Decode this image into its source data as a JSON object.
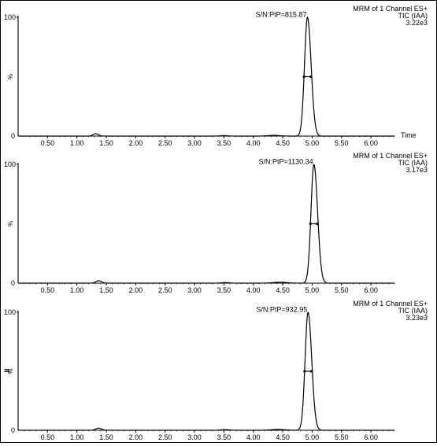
{
  "chart_data": [
    {
      "type": "line",
      "header": {
        "line1": "MRM of 1 Channel ES+",
        "line2": "TIC (IAA)",
        "line3": "3.22e3"
      },
      "sn_label": "S/N:PtP=815.87",
      "xlabel": "Time",
      "ylabel": "%",
      "y_top_label": "100",
      "y_bottom_label": "0",
      "xlim": [
        0.0,
        6.4
      ],
      "ylim": [
        0,
        100
      ],
      "x_ticks": [
        "0.50",
        "1.00",
        "1.50",
        "2.00",
        "2.50",
        "3.00",
        "3.50",
        "4.00",
        "4.50",
        "5.00",
        "5.50",
        "6.00"
      ],
      "peak_rt": 4.92,
      "peak_sigma": 0.05,
      "peak_height": 100,
      "peak_width_marker_level": 50,
      "baseline_bumps": [
        {
          "x": 1.32,
          "h": 2.0,
          "s": 0.045
        },
        {
          "x": 3.5,
          "h": 0.4,
          "s": 0.06
        },
        {
          "x": 4.35,
          "h": 0.6,
          "s": 0.1
        }
      ]
    },
    {
      "type": "line",
      "header": {
        "line1": "MRM of 1 Channel ES+",
        "line2": "TIC (IAA)",
        "line3": "3.17e3"
      },
      "sn_label": "S/N:PtP=1130.34",
      "xlabel": "",
      "ylabel": "%",
      "y_top_label": "100",
      "y_bottom_label": "0",
      "xlim": [
        0.0,
        6.4
      ],
      "ylim": [
        0,
        100
      ],
      "x_ticks": [
        "0.50",
        "1.00",
        "1.50",
        "2.00",
        "2.50",
        "3.00",
        "3.50",
        "4.00",
        "4.50",
        "5.00",
        "5.50",
        "6.00"
      ],
      "peak_rt": 5.03,
      "peak_sigma": 0.05,
      "peak_height": 100,
      "peak_width_marker_level": 50,
      "baseline_bumps": [
        {
          "x": 1.37,
          "h": 2.0,
          "s": 0.05
        },
        {
          "x": 3.52,
          "h": 0.5,
          "s": 0.07
        },
        {
          "x": 4.45,
          "h": 0.8,
          "s": 0.12
        }
      ]
    },
    {
      "type": "line",
      "header": {
        "line1": "MRM of 1 Channel ES+",
        "line2": "TIC (IAA)",
        "line3": "3.23e3"
      },
      "sn_label": "S/N:PtP=932.95",
      "xlabel": "",
      "ylabel": "%",
      "y_top_label": "100",
      "y_bottom_label": "0",
      "xlim": [
        0.0,
        6.4
      ],
      "ylim": [
        0,
        100
      ],
      "x_ticks": [
        "0.50",
        "1.00",
        "1.50",
        "2.00",
        "2.50",
        "3.00",
        "3.50",
        "4.00",
        "4.50",
        "5.00",
        "5.50",
        "6.00"
      ],
      "peak_rt": 4.93,
      "peak_sigma": 0.05,
      "peak_height": 100,
      "peak_width_marker_level": 50,
      "baseline_bumps": [
        {
          "x": 1.37,
          "h": 1.8,
          "s": 0.05
        },
        {
          "x": 3.52,
          "h": 0.5,
          "s": 0.07
        },
        {
          "x": 4.42,
          "h": 0.7,
          "s": 0.12
        }
      ]
    }
  ],
  "side_marker": "II"
}
